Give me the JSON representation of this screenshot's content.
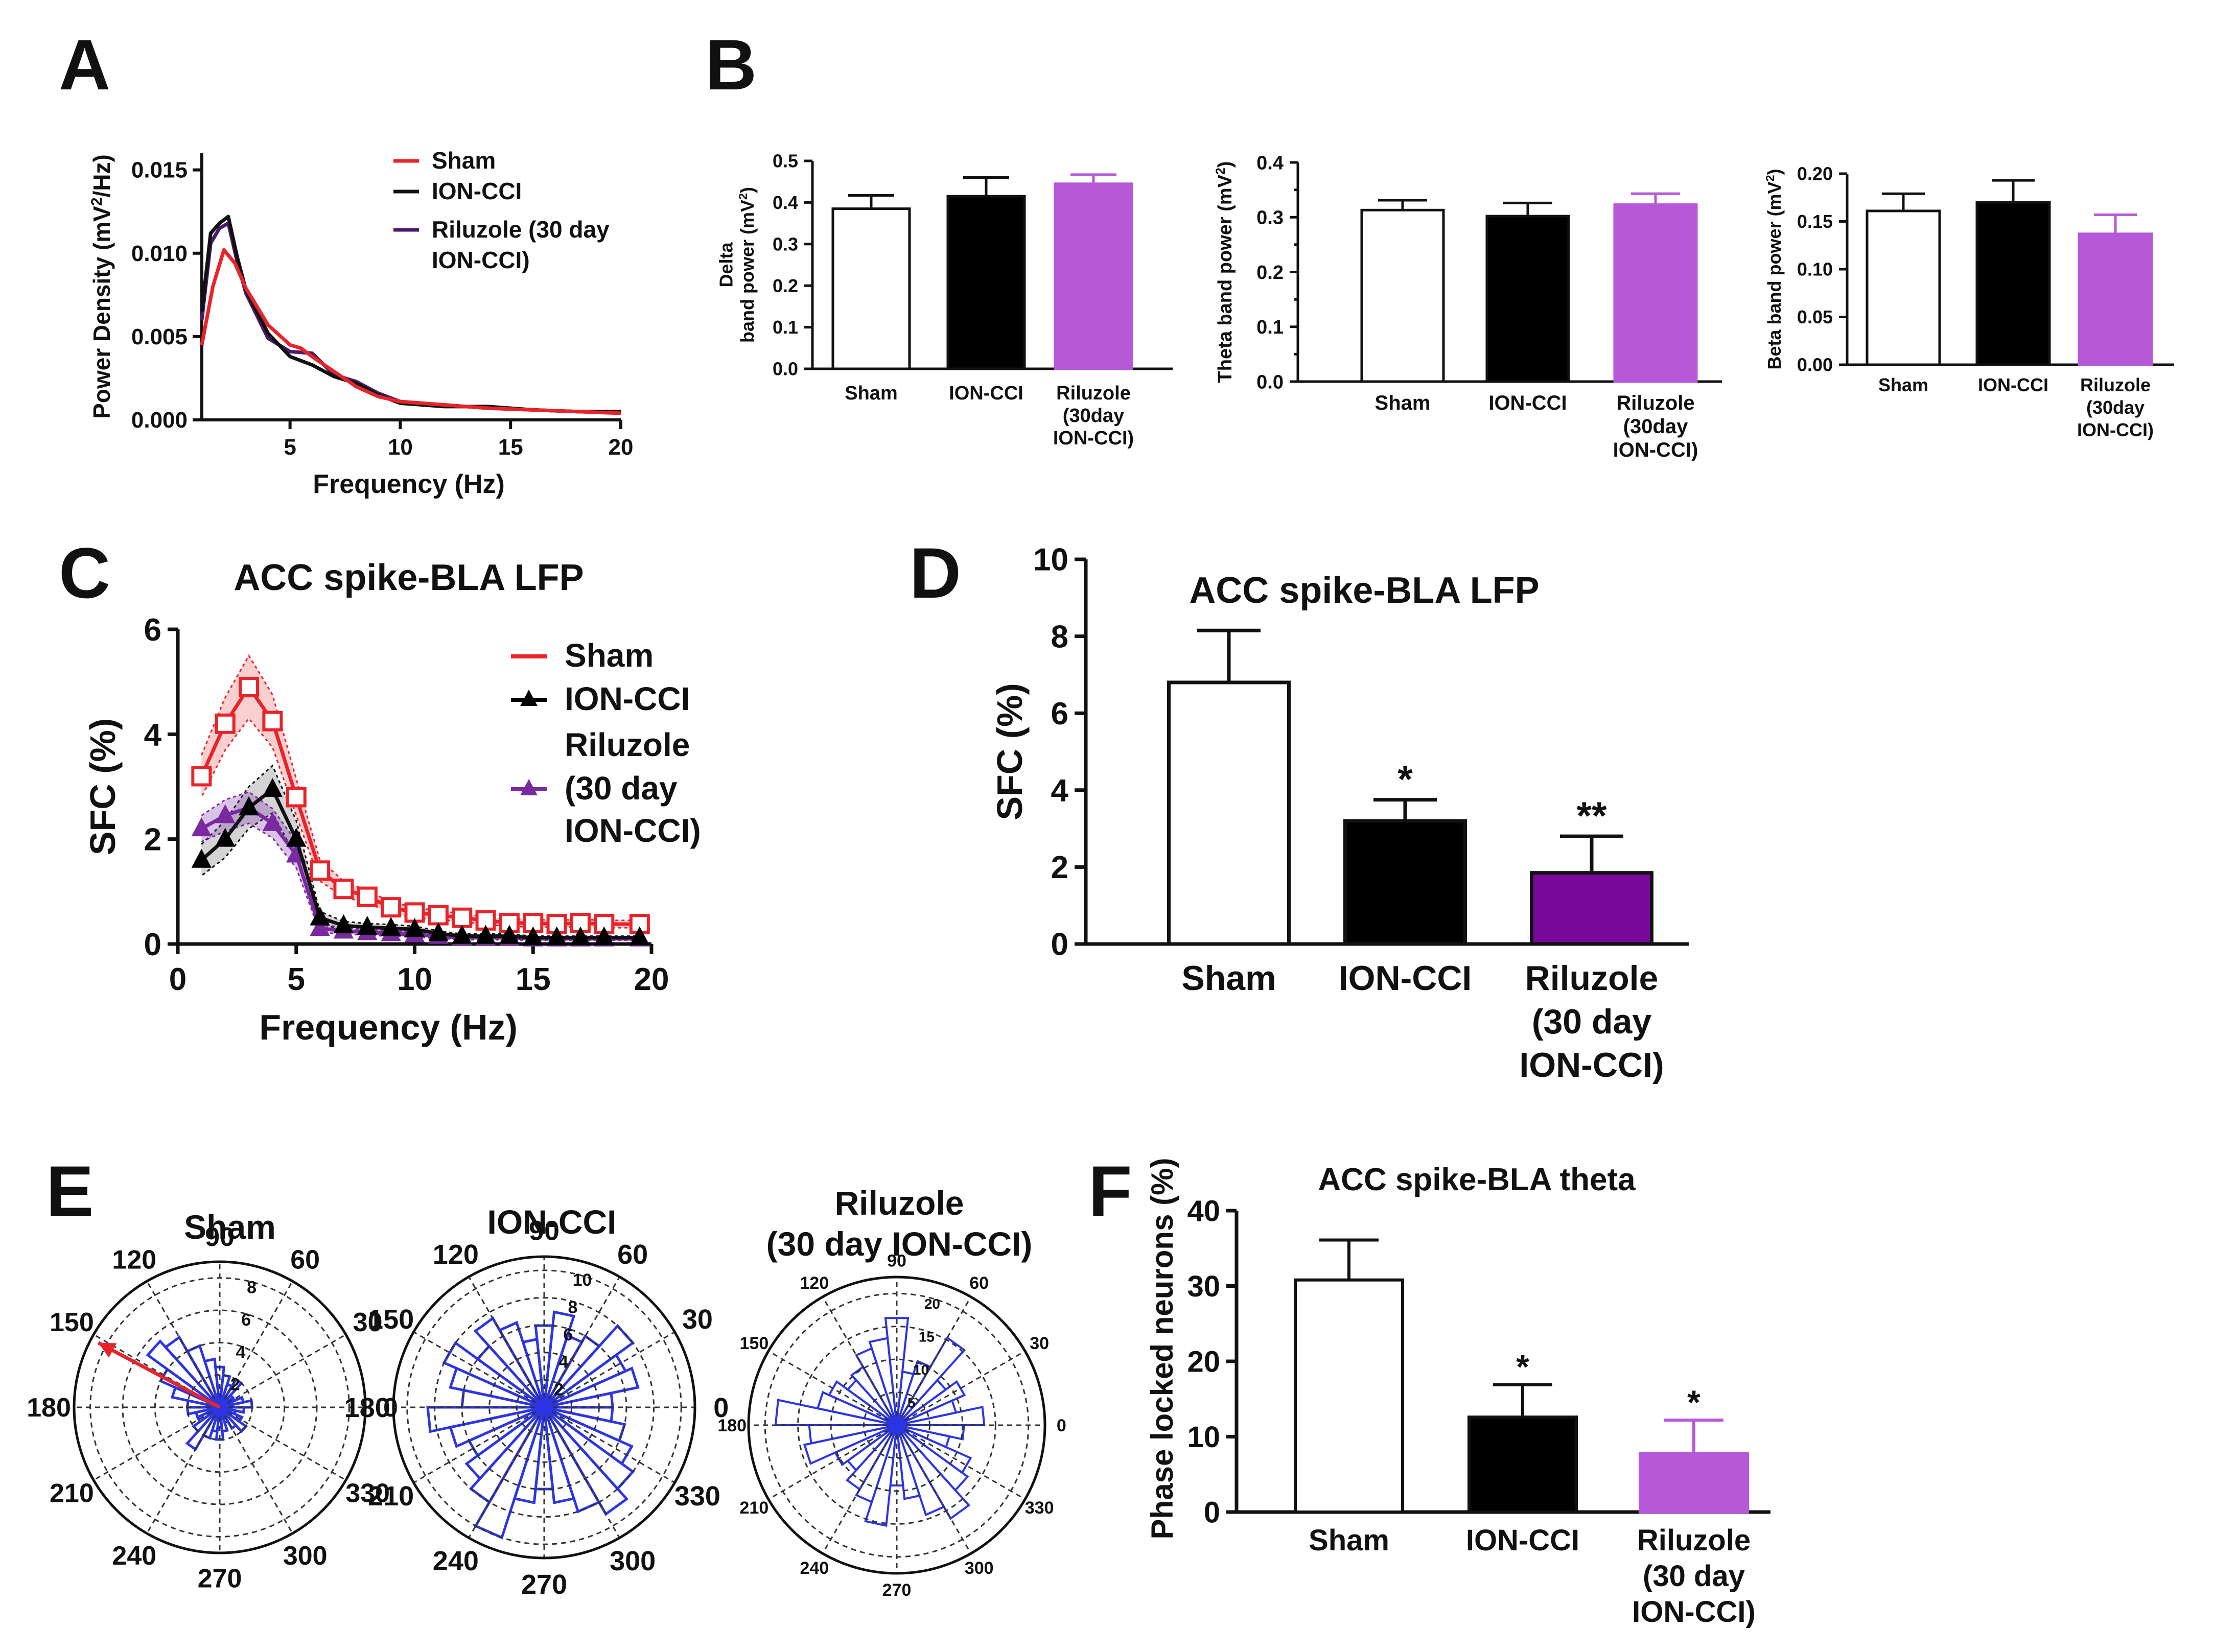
{
  "panel_letters": [
    "A",
    "B",
    "C",
    "D",
    "E",
    "F"
  ],
  "colors": {
    "sham": "#e8242a",
    "ion": "#111111",
    "ril_dark": "#4b1a6b",
    "ril_purple": "#b659d8",
    "ril_deep": "#77089a",
    "blue": "#2b35e6",
    "bar_outline": "#111111"
  },
  "chart_data": [
    {
      "id": "A",
      "type": "line",
      "title": "",
      "xlabel": "Frequency (Hz)",
      "ylabel_pre": "Power Density (mV",
      "ylabel_sup": "2",
      "ylabel_post": "/Hz)",
      "xlim": [
        1,
        20
      ],
      "ylim": [
        0,
        0.016
      ],
      "xticks": [
        5,
        10,
        15,
        20
      ],
      "xtick_labels": [
        "5",
        "10",
        "15",
        "20"
      ],
      "yticks": [
        0,
        0.005,
        0.01,
        0.015
      ],
      "ytick_labels": [
        "0.000",
        "0.005",
        "0.010",
        "0.015"
      ],
      "legend": [
        "Sham",
        "ION-CCI",
        "Riluzole (30 day",
        "ION-CCI)"
      ],
      "series": [
        {
          "name": "Sham",
          "x": [
            1,
            1.5,
            2,
            2.5,
            3,
            4,
            5,
            5.5,
            6,
            7,
            8,
            9,
            10,
            12,
            14,
            16,
            18,
            20
          ],
          "y": [
            0.0045,
            0.008,
            0.0102,
            0.0094,
            0.0079,
            0.0057,
            0.0045,
            0.0043,
            0.0038,
            0.0029,
            0.002,
            0.0014,
            0.0011,
            0.0009,
            0.0007,
            0.0006,
            0.0005,
            0.0004
          ]
        },
        {
          "name": "ION-CCI",
          "x": [
            1,
            1.4,
            1.8,
            2.2,
            2.6,
            3,
            4,
            5,
            6,
            7,
            8,
            9,
            10,
            12,
            14,
            16,
            18,
            20
          ],
          "y": [
            0.0065,
            0.0112,
            0.0118,
            0.0122,
            0.0098,
            0.0078,
            0.0052,
            0.0038,
            0.0033,
            0.0026,
            0.0022,
            0.0015,
            0.001,
            0.0008,
            0.0008,
            0.0006,
            0.0005,
            0.0005
          ]
        },
        {
          "name": "Riluzole (30 day ION-CCI)",
          "x": [
            1,
            1.4,
            1.8,
            2.2,
            2.6,
            3,
            4,
            5,
            6,
            7,
            8,
            9,
            10,
            12,
            14,
            16,
            18,
            20
          ],
          "y": [
            0.006,
            0.0106,
            0.0115,
            0.0118,
            0.0095,
            0.0076,
            0.0049,
            0.0041,
            0.004,
            0.0027,
            0.0023,
            0.0016,
            0.0011,
            0.0009,
            0.0007,
            0.0006,
            0.0005,
            0.0005
          ]
        }
      ]
    },
    {
      "id": "B1",
      "type": "bar",
      "ylabel_line1": "Delta",
      "ylabel_pre": "band power (mV",
      "ylabel_sup": "2",
      "ylabel_post": ")",
      "categories": [
        "Sham",
        "ION-CCI",
        "Riluzole (30day ION-CCI)"
      ],
      "category_lines": [
        [
          "Sham"
        ],
        [
          "ION-CCI"
        ],
        [
          "Riluzole",
          "(30day",
          " ION-CCI)"
        ]
      ],
      "values": [
        0.385,
        0.415,
        0.445
      ],
      "errors": [
        0.032,
        0.045,
        0.022
      ],
      "ylim": [
        0,
        0.5
      ],
      "yticks": [
        0,
        0.1,
        0.2,
        0.3,
        0.4,
        0.5
      ],
      "ytick_labels": [
        "0.0",
        "0.1",
        "0.2",
        "0.3",
        "0.4",
        "0.5"
      ]
    },
    {
      "id": "B2",
      "type": "bar",
      "ylabel_line1": "",
      "ylabel_pre": "Theta band power (mV",
      "ylabel_sup": "2",
      "ylabel_post": ")",
      "categories": [
        "Sham",
        "ION-CCI",
        "Riluzole (30day ION-CCI)"
      ],
      "category_lines": [
        [
          "Sham"
        ],
        [
          "ION-CCI"
        ],
        [
          "Riluzole",
          "(30day",
          "ION-CCI)"
        ]
      ],
      "values": [
        0.313,
        0.302,
        0.323
      ],
      "errors": [
        0.018,
        0.024,
        0.02
      ],
      "ylim": [
        0,
        0.4
      ],
      "yticks": [
        0,
        0.1,
        0.2,
        0.3,
        0.4
      ],
      "ytick_labels": [
        "0.0",
        "0.1",
        "0.2",
        "0.3",
        "0.4"
      ]
    },
    {
      "id": "B3",
      "type": "bar",
      "ylabel_line1": "",
      "ylabel_pre": "Beta band power (mV",
      "ylabel_sup": "2",
      "ylabel_post": ")",
      "categories": [
        "Sham",
        "ION-CCI",
        "Riluzole (30day ION-CCI)"
      ],
      "category_lines": [
        [
          "Sham"
        ],
        [
          "ION-CCI"
        ],
        [
          "Riluzole",
          "(30day",
          " ION-CCI)"
        ]
      ],
      "values": [
        0.161,
        0.17,
        0.137
      ],
      "errors": [
        0.018,
        0.023,
        0.02
      ],
      "ylim": [
        0,
        0.2
      ],
      "yticks": [
        0,
        0.05,
        0.1,
        0.15,
        0.2
      ],
      "ytick_labels": [
        "0.00",
        "0.05",
        "0.10",
        "0.15",
        "0.20"
      ]
    },
    {
      "id": "C",
      "type": "line",
      "title": "ACC spike-BLA LFP",
      "xlabel": "Frequency (Hz)",
      "ylabel": "SFC (%)",
      "xlim": [
        0,
        20
      ],
      "ylim": [
        0,
        6
      ],
      "xticks": [
        0,
        5,
        10,
        15,
        20
      ],
      "xtick_labels": [
        "0",
        "5",
        "10",
        "15",
        "20"
      ],
      "yticks": [
        0,
        2,
        4,
        6
      ],
      "ytick_labels": [
        "0",
        "2",
        "4",
        "6"
      ],
      "legend": [
        "Sham",
        "ION-CCI",
        "Riluzole",
        "(30 day",
        "ION-CCI)"
      ],
      "series": [
        {
          "name": "Sham",
          "x": [
            1,
            2,
            3,
            4,
            5,
            6,
            7,
            8,
            9,
            10,
            11,
            12,
            13,
            14,
            15,
            16,
            17,
            18,
            19.5
          ],
          "y": [
            3.2,
            4.2,
            4.9,
            4.25,
            2.8,
            1.4,
            1.05,
            0.9,
            0.7,
            0.6,
            0.55,
            0.5,
            0.45,
            0.4,
            0.4,
            0.38,
            0.4,
            0.38,
            0.38
          ],
          "sem": [
            0.4,
            0.5,
            0.6,
            0.5,
            0.35,
            0.2,
            0.15,
            0.12,
            0.1,
            0.1,
            0.08,
            0.08,
            0.07,
            0.07,
            0.07,
            0.07,
            0.07,
            0.07,
            0.07
          ]
        },
        {
          "name": "ION-CCI",
          "x": [
            1,
            2,
            3,
            4,
            5,
            6,
            7,
            8,
            9,
            10,
            11,
            12,
            13,
            14,
            15,
            16,
            17,
            18,
            19.5
          ],
          "y": [
            1.6,
            2.0,
            2.6,
            2.95,
            2.0,
            0.5,
            0.35,
            0.32,
            0.3,
            0.28,
            0.2,
            0.15,
            0.15,
            0.15,
            0.12,
            0.12,
            0.12,
            0.12,
            0.12
          ],
          "sem": [
            0.3,
            0.35,
            0.4,
            0.45,
            0.35,
            0.12,
            0.08,
            0.07,
            0.07,
            0.06,
            0.05,
            0.04,
            0.04,
            0.04,
            0.03,
            0.03,
            0.03,
            0.03,
            0.03
          ]
        },
        {
          "name": "Riluzole (30 day ION-CCI)",
          "x": [
            1,
            2,
            3,
            4,
            5,
            6,
            7,
            8,
            9,
            10,
            11,
            12,
            13,
            14,
            15,
            16,
            17,
            18,
            19.5
          ],
          "y": [
            2.2,
            2.45,
            2.6,
            2.3,
            1.7,
            0.3,
            0.25,
            0.22,
            0.2,
            0.18,
            0.15,
            0.12,
            0.12,
            0.12,
            0.1,
            0.1,
            0.1,
            0.1,
            0.1
          ],
          "sem": [
            0.25,
            0.3,
            0.3,
            0.28,
            0.25,
            0.08,
            0.06,
            0.05,
            0.05,
            0.05,
            0.04,
            0.04,
            0.04,
            0.04,
            0.03,
            0.03,
            0.03,
            0.03,
            0.03
          ]
        }
      ]
    },
    {
      "id": "D",
      "type": "bar",
      "title": "ACC spike-BLA LFP",
      "ylabel": "SFC (%)",
      "categories": [
        "Sham",
        "ION-CCI",
        "Riluzole (30 day ION-CCI)"
      ],
      "category_lines": [
        [
          "Sham"
        ],
        [
          "ION-CCI"
        ],
        [
          "Riluzole",
          "(30 day",
          "ION-CCI)"
        ]
      ],
      "values": [
        6.8,
        3.2,
        1.85
      ],
      "errors": [
        1.35,
        0.55,
        0.95
      ],
      "significance": [
        "",
        "*",
        "**"
      ],
      "ylim": [
        0,
        10
      ],
      "yticks": [
        0,
        2,
        4,
        6,
        8,
        10
      ],
      "ytick_labels": [
        "0",
        "2",
        "4",
        "6",
        "8",
        "10"
      ]
    },
    {
      "id": "E",
      "type": "polar-histogram",
      "angle_labels": [
        "90",
        "60",
        "30",
        "0",
        "330",
        "300",
        "270",
        "240",
        "210",
        "180",
        "150",
        "120"
      ],
      "panels": [
        {
          "title": "Sham",
          "rmax": 9,
          "ring_labels": [
            "2",
            "4",
            "6",
            "8"
          ],
          "mean_vector": {
            "angle_deg": 152,
            "length": 8.5
          },
          "counts": [
            2,
            1.5,
            1,
            1,
            2,
            1.5,
            2,
            2.5,
            3,
            4,
            5,
            5.5,
            4,
            3,
            2,
            2,
            1.5,
            1.5,
            2,
            3,
            2,
            1.5,
            2,
            1.5,
            1,
            1.5,
            2,
            1.5,
            1,
            1.5
          ]
        },
        {
          "title": "ION-CCI",
          "rmax": 11,
          "ring_labels": [
            "2",
            "4",
            "6",
            "8",
            "10"
          ],
          "counts": [
            5,
            7,
            6.5,
            8,
            6,
            5.5,
            7,
            6,
            5,
            6.5,
            7.5,
            6,
            8,
            7,
            6,
            8.5,
            7,
            6,
            7,
            8,
            10,
            7,
            6,
            7,
            8,
            9,
            8,
            7,
            6,
            5
          ]
        },
        {
          "title": "Riluzole",
          "title2": "(30 day ION-CCI)",
          "rmax": 22,
          "ring_labels": [
            "5",
            "10",
            "15",
            "20"
          ],
          "counts": [
            13,
            9,
            11,
            9,
            15,
            10,
            8,
            16,
            13,
            12,
            10,
            9,
            11,
            12,
            18,
            13,
            14,
            10,
            9,
            11,
            12,
            15,
            9,
            11,
            14,
            16,
            13,
            12,
            8,
            10
          ]
        }
      ]
    },
    {
      "id": "F",
      "type": "bar",
      "title": "ACC spike-BLA theta",
      "ylabel": "Phase locked neurons (%)",
      "categories": [
        "Sham",
        "ION-CCI",
        "Riluzole (30 day ION-CCI)"
      ],
      "category_lines": [
        [
          "Sham"
        ],
        [
          "ION-CCI"
        ],
        [
          "Riluzole",
          "(30 day",
          "ION-CCI)"
        ]
      ],
      "values": [
        30.8,
        12.6,
        7.8
      ],
      "errors": [
        5.3,
        4.3,
        4.4
      ],
      "significance": [
        "",
        "*",
        "*"
      ],
      "ylim": [
        0,
        40
      ],
      "yticks": [
        0,
        10,
        20,
        30,
        40
      ],
      "ytick_labels": [
        "0",
        "10",
        "20",
        "30",
        "40"
      ]
    }
  ]
}
